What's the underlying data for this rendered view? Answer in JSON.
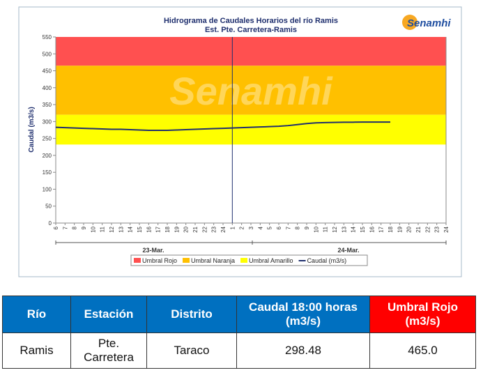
{
  "chart_data": {
    "type": "line",
    "title": "Hidrograma de Caudales Horarios del río Ramis",
    "subtitle": "Est. Pte. Carretera-Ramis",
    "logo": "Senamhi",
    "y_label": "Caudal  (m3/s)",
    "ylim": [
      0,
      550
    ],
    "yticks": [
      0,
      50,
      100,
      150,
      200,
      250,
      300,
      350,
      400,
      450,
      500,
      550
    ],
    "categories": [
      "6",
      "7",
      "8",
      "9",
      "10",
      "11",
      "12",
      "13",
      "14",
      "15",
      "16",
      "17",
      "18",
      "19",
      "20",
      "21",
      "22",
      "23",
      "24",
      "1",
      "2",
      "3",
      "4",
      "5",
      "6",
      "7",
      "8",
      "9",
      "10",
      "11",
      "12",
      "13",
      "14",
      "15",
      "16",
      "17",
      "18",
      "19",
      "20",
      "21",
      "22",
      "23",
      "24"
    ],
    "days": [
      "23-Mar.",
      "24-Mar."
    ],
    "thresholds": [
      {
        "name": "Umbral Rojo",
        "color": "#ff5050",
        "value": 465
      },
      {
        "name": "Umbral Naranja",
        "color": "#ffc000",
        "value": 320
      },
      {
        "name": "Umbral Amarillo",
        "color": "#ffff00",
        "value": 232
      }
    ],
    "series": [
      {
        "name": "Caudal (m3/s)",
        "color": "#1f2f6e",
        "values": [
          283,
          282,
          281,
          280,
          279,
          278,
          277,
          277,
          276,
          275,
          274,
          274,
          274,
          275,
          276,
          277,
          278,
          279,
          280,
          281,
          282,
          283,
          284,
          285,
          286,
          288,
          291,
          294,
          296,
          297,
          297.5,
          298,
          298,
          298.5,
          298.5,
          298.5,
          298.48,
          null,
          null,
          null,
          null,
          null,
          null
        ]
      }
    ]
  },
  "table": {
    "header": [
      "Río",
      "Estación",
      "Distrito",
      "Caudal  18:00 horas (m3/s)",
      "Umbral Rojo (m3/s)"
    ],
    "rows": [
      [
        "Ramis",
        "Pte. Carretera",
        "Taraco",
        "298.48",
        "465.0"
      ]
    ]
  }
}
